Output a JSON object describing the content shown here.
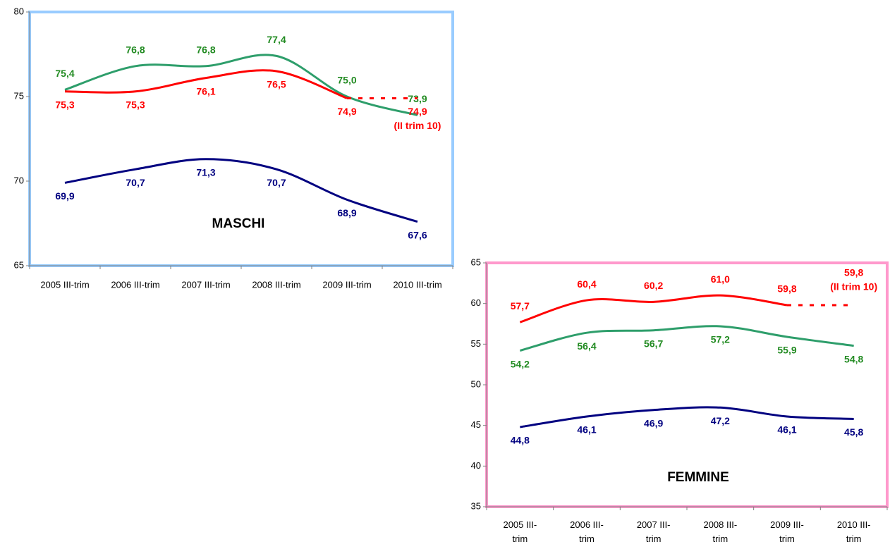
{
  "chart_data": [
    {
      "type": "line",
      "title": "MASCHI",
      "frame_color": "#99ccff",
      "categories": [
        "2005 III-trim",
        "2006 III-trim",
        "2007 III-trim",
        "2008 III-trim",
        "2009 III-trim",
        "2010 III-trim"
      ],
      "ylim": [
        65,
        80
      ],
      "yticks": [
        65,
        70,
        75,
        80
      ],
      "series": [
        {
          "color": "#2e9e6b",
          "label_color": "#228b22",
          "label_position": "above",
          "values": [
            75.4,
            76.8,
            76.8,
            77.4,
            75.0,
            73.9
          ],
          "value_labels": [
            "75,4",
            "76,8",
            "76,8",
            "77,4",
            "75,0",
            "73,9"
          ]
        },
        {
          "color": "#ff0000",
          "label_color": "#ff0000",
          "label_position": "below",
          "dashed_last_segment": true,
          "annotation": "(II trim 10)",
          "values": [
            75.3,
            75.3,
            76.1,
            76.5,
            74.9,
            74.9
          ],
          "value_labels": [
            "75,3",
            "75,3",
            "76,1",
            "76,5",
            "74,9",
            "74,9"
          ]
        },
        {
          "color": "#000080",
          "label_color": "#000080",
          "label_position": "below",
          "values": [
            69.9,
            70.7,
            71.3,
            70.7,
            68.9,
            67.6
          ],
          "value_labels": [
            "69,9",
            "70,7",
            "71,3",
            "70,7",
            "68,9",
            "67,6"
          ]
        }
      ]
    },
    {
      "type": "line",
      "title": "FEMMINE",
      "frame_color": "#ff99cc",
      "categories": [
        "2005 III-trim",
        "2006 III-trim",
        "2007 III-trim",
        "2008 III-trim",
        "2009 III-trim",
        "2010 III-trim"
      ],
      "ylim": [
        35,
        65
      ],
      "yticks": [
        35,
        40,
        45,
        50,
        55,
        60,
        65
      ],
      "series": [
        {
          "color": "#ff0000",
          "label_color": "#ff0000",
          "label_position": "above",
          "dashed_last_segment": true,
          "annotation": "(II trim 10)",
          "values": [
            57.7,
            60.4,
            60.2,
            61.0,
            59.8,
            59.8
          ],
          "value_labels": [
            "57,7",
            "60,4",
            "60,2",
            "61,0",
            "59,8",
            "59,8"
          ]
        },
        {
          "color": "#2e9e6b",
          "label_color": "#228b22",
          "label_position": "below",
          "values": [
            54.2,
            56.4,
            56.7,
            57.2,
            55.9,
            54.8
          ],
          "value_labels": [
            "54,2",
            "56,4",
            "56,7",
            "57,2",
            "55,9",
            "54,8"
          ]
        },
        {
          "color": "#000080",
          "label_color": "#000080",
          "label_position": "below",
          "values": [
            44.8,
            46.1,
            46.9,
            47.2,
            46.1,
            45.8
          ],
          "value_labels": [
            "44,8",
            "46,1",
            "46,9",
            "47,2",
            "46,1",
            "45,8"
          ]
        }
      ]
    }
  ]
}
